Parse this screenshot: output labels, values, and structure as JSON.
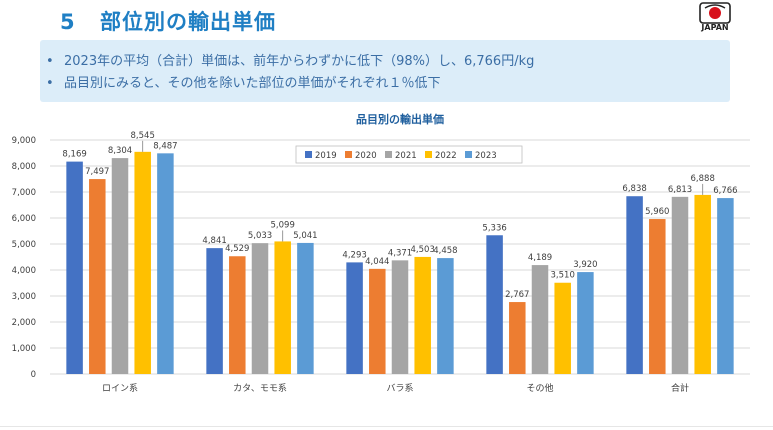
{
  "slide": {
    "number": "5",
    "title": "部位別の輸出単価",
    "logo_text": "JAPAN",
    "bullets": [
      "2023年の平均（合計）単価は、前年からわずかに低下（98%）し、6,766円/kg",
      "品目別にみると、その他を除いた部位の単価がそれぞれ１％低下"
    ]
  },
  "chart_data": {
    "type": "bar",
    "title": "品目別の輸出単価",
    "categories": [
      "ロイン系",
      "カタ、モモ系",
      "バラ系",
      "その他",
      "合計"
    ],
    "series": [
      {
        "name": "2019",
        "color": "#4472c4",
        "values": [
          8169,
          4841,
          4293,
          5336,
          6838
        ]
      },
      {
        "name": "2020",
        "color": "#ed7d31",
        "values": [
          7497,
          4529,
          4044,
          2767,
          5960
        ]
      },
      {
        "name": "2021",
        "color": "#a5a5a5",
        "values": [
          8304,
          5033,
          4371,
          4189,
          6813
        ]
      },
      {
        "name": "2022",
        "color": "#ffc000",
        "values": [
          8545,
          5099,
          4503,
          3510,
          6888
        ]
      },
      {
        "name": "2023",
        "color": "#5b9bd5",
        "values": [
          8487,
          5041,
          4458,
          3920,
          6766
        ]
      }
    ],
    "ylim": [
      0,
      9000
    ],
    "yticks": [
      0,
      1000,
      2000,
      3000,
      4000,
      5000,
      6000,
      7000,
      8000,
      9000
    ],
    "legend": "top",
    "grid": true
  }
}
